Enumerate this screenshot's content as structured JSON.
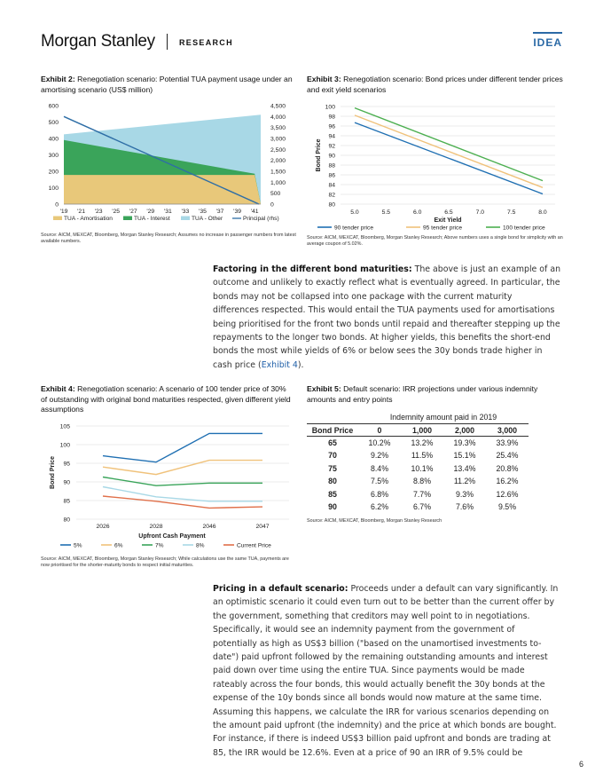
{
  "header": {
    "brand": "Morgan Stanley",
    "section": "RESEARCH",
    "tag": "IDEA"
  },
  "exhibit2": {
    "label": "Exhibit 2:",
    "title": "Renegotiation scenario: Potential TUA payment usage under an amortising scenario (US$ million)",
    "source": "Source: AICM, MEXCAT, Bloomberg, Morgan Stanley Research; Assumes no increase in passenger numbers from latest available numbers."
  },
  "exhibit3": {
    "label": "Exhibit 3:",
    "title": "Renegotiation scenario: Bond prices under different tender prices and exit yield scenarios",
    "source": "Source: AICM, MEXCAT, Bloomberg, Morgan Stanley Research; Above numbers uses a single bond for simplicity with an average coupon of 5.02%."
  },
  "exhibit4": {
    "label": "Exhibit 4:",
    "title": "Renegotiation scenario: A scenario of 100 tender price of 30% of outstanding with original bond maturities respected, given different yield assumptions",
    "source": "Source: AICM, MEXCAT, Bloomberg, Morgan Stanley Research; While calculations use the same TUA, payments are now prioritised for the shorter-maturity bonds to respect initial maturities."
  },
  "exhibit5": {
    "label": "Exhibit 5:",
    "title": "Default scenario: IRR projections under various indemnity amounts and entry points",
    "source": "Source: AICM, MEXCAT, Bloomberg, Morgan Stanley Research",
    "span_header": "Indemnity amount paid in 2019",
    "row_header": "Bond Price",
    "columns": [
      "0",
      "1,000",
      "2,000",
      "3,000"
    ],
    "rows": [
      {
        "price": "65",
        "values": [
          "10.2%",
          "13.2%",
          "19.3%",
          "33.9%"
        ]
      },
      {
        "price": "70",
        "values": [
          "9.2%",
          "11.5%",
          "15.1%",
          "25.4%"
        ]
      },
      {
        "price": "75",
        "values": [
          "8.4%",
          "10.1%",
          "13.4%",
          "20.8%"
        ]
      },
      {
        "price": "80",
        "values": [
          "7.5%",
          "8.8%",
          "11.2%",
          "16.2%"
        ]
      },
      {
        "price": "85",
        "values": [
          "6.8%",
          "7.7%",
          "9.3%",
          "12.6%"
        ]
      },
      {
        "price": "90",
        "values": [
          "6.2%",
          "6.7%",
          "7.6%",
          "9.5%"
        ]
      }
    ]
  },
  "para1": {
    "lead": "Factoring in the different bond maturities:",
    "text": " The above is just an example of an outcome and unlikely to exactly reflect what is eventually agreed. In particular, the bonds may not be collapsed into one package with the current maturity differences respected. This would entail the TUA payments used for amortisations being prioritised for the front two bonds until repaid and thereafter stepping up the repayments to the longer two bonds. At higher yields, this benefits the short-end bonds the most while yields of 6% or below sees the 30y bonds trade higher in cash price (",
    "link": "Exhibit 4",
    "tail": ")."
  },
  "para2": {
    "lead": "Pricing in a default scenario:",
    "text": " Proceeds under a default can vary significantly. In an optimistic scenario it could even turn out to be better than the current offer by the government, something that creditors may well point to in negotiations. Specifically, it would see an indemnity payment from the government of potentially as high as US$3 billion (\"based on the unamortised investments to-date\") paid upfront followed by the remaining outstanding amounts and interest paid down over time using the entire TUA. Since payments would be made rateably across the four bonds, this would actually benefit the 30y bonds at the expense of the 10y bonds since all bonds would now mature at the same time. Assuming this happens, we calculate the IRR for various scenarios depending on the amount paid upfront (the indemnity) and the price at which bonds are bought. For instance, if there is indeed US$3 billion paid upfront and bonds are trading at 85, the IRR would be 12.6%. Even at a price of 90 an IRR of 9.5% could be"
  },
  "page_number": "6",
  "chart_data": [
    {
      "id": "exhibit2",
      "type": "area",
      "x": [
        "'19",
        "'21",
        "'23",
        "'25",
        "'27",
        "'29",
        "'31",
        "'33",
        "'35",
        "'37",
        "'39",
        "'41"
      ],
      "x_years": [
        2019,
        2041
      ],
      "x_end": 2041.7,
      "ylim": [
        0,
        600
      ],
      "yticks": [
        "0",
        "100",
        "200",
        "300",
        "400",
        "500",
        "600"
      ],
      "y2lim": [
        0,
        4500
      ],
      "y2ticks": [
        "0",
        "500",
        "1,000",
        "1,500",
        "2,000",
        "2,500",
        "3,000",
        "3,500",
        "4,000",
        "4,500"
      ],
      "colors": {
        "amort": "#e8c87a",
        "interest": "#3aa45a",
        "other": "#a8d8e6",
        "principal": "#2e6ea6"
      },
      "series": [
        {
          "name": "TUA - Amortisation",
          "kind": "area",
          "points": [
            [
              2019,
              178
            ],
            [
              2041,
              178
            ],
            [
              2041.7,
              0
            ]
          ]
        },
        {
          "name": "TUA - Interest",
          "kind": "area",
          "points": [
            [
              2019,
              390
            ],
            [
              2041,
              185
            ],
            [
              2041.7,
              0
            ]
          ]
        },
        {
          "name": "TUA - Other",
          "kind": "area",
          "points": [
            [
              2019,
              425
            ],
            [
              2041.7,
              545
            ]
          ]
        },
        {
          "name": "Principal (rhs)",
          "kind": "line",
          "axis": "right",
          "points": [
            [
              2019,
              4000
            ],
            [
              2041.5,
              0
            ]
          ]
        }
      ]
    },
    {
      "id": "exhibit3",
      "type": "line",
      "xlabel": "Exit Yield",
      "ylabel": "Bond Price",
      "xlim": [
        5.0,
        8.0
      ],
      "xticks": [
        "5.0",
        "5.5",
        "6.0",
        "6.5",
        "7.0",
        "7.5",
        "8.0"
      ],
      "ylim": [
        80,
        100
      ],
      "yticks": [
        "80",
        "82",
        "84",
        "86",
        "88",
        "90",
        "92",
        "94",
        "96",
        "98",
        "100"
      ],
      "series": [
        {
          "name": "90 tender price",
          "color": "#1f6fb2",
          "x": [
            5.0,
            8.0
          ],
          "y": [
            96.7,
            82.1
          ]
        },
        {
          "name": "95 tender price",
          "color": "#f0c27b",
          "x": [
            5.0,
            8.0
          ],
          "y": [
            98.2,
            83.4
          ]
        },
        {
          "name": "100 tender price",
          "color": "#4caf50",
          "x": [
            5.0,
            8.0
          ],
          "y": [
            99.7,
            84.8
          ]
        }
      ]
    },
    {
      "id": "exhibit4",
      "type": "line",
      "xlabel": "Upfront Cash Payment",
      "ylabel": "Bond Price",
      "categories": [
        "2026",
        "2028",
        "2046",
        "2047"
      ],
      "ylim": [
        80,
        105
      ],
      "yticks": [
        "80",
        "85",
        "90",
        "95",
        "100",
        "105"
      ],
      "series": [
        {
          "name": "5%",
          "color": "#1f6fb2",
          "values": [
            97.0,
            95.3,
            103.0,
            103.0
          ]
        },
        {
          "name": "6%",
          "color": "#f0c27b",
          "values": [
            94.0,
            92.0,
            95.8,
            95.8
          ]
        },
        {
          "name": "7%",
          "color": "#3aa45a",
          "values": [
            91.3,
            89.0,
            89.7,
            89.7
          ]
        },
        {
          "name": "8%",
          "color": "#a8d8e6",
          "values": [
            88.7,
            86.0,
            84.8,
            84.8
          ]
        },
        {
          "name": "Current Price",
          "color": "#e0704a",
          "values": [
            86.2,
            84.8,
            83.0,
            83.3
          ]
        }
      ]
    }
  ]
}
